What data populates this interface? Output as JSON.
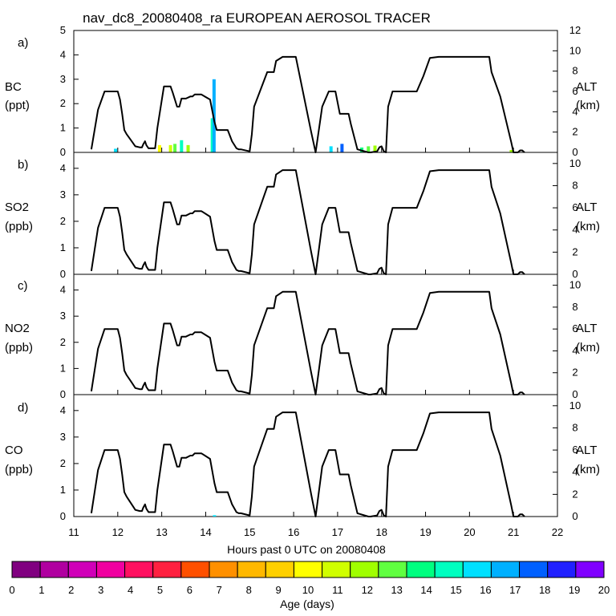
{
  "title": "nav_dc8_20080408_ra EUROPEAN AEROSOL TRACER",
  "x_axis": {
    "label": "Hours past 0 UTC on 20080408",
    "min": 11,
    "max": 22,
    "ticks": [
      "11",
      "12",
      "13",
      "14",
      "15",
      "16",
      "17",
      "18",
      "19",
      "20",
      "21",
      "22"
    ]
  },
  "colorbar": {
    "label": "Age (days)",
    "min": 0,
    "max": 20,
    "ticks": [
      "0",
      "1",
      "2",
      "3",
      "4",
      "5",
      "6",
      "7",
      "8",
      "9",
      "10",
      "11",
      "12",
      "13",
      "14",
      "15",
      "16",
      "17",
      "18",
      "19",
      "20"
    ],
    "colors": [
      "#800080",
      "#b000a0",
      "#d000b8",
      "#f000a0",
      "#ff1060",
      "#ff2040",
      "#ff5000",
      "#ff9000",
      "#ffb800",
      "#ffd000",
      "#ffff00",
      "#d0ff00",
      "#a0ff00",
      "#60ff40",
      "#00ff80",
      "#00ffc0",
      "#00e0ff",
      "#00b0ff",
      "#0060ff",
      "#2020ff",
      "#8000ff"
    ]
  },
  "chart_data": [
    {
      "type": "line",
      "panel": "a)",
      "ylabel": "BC",
      "yunit": "(ppt)",
      "ylim": [
        0,
        5
      ],
      "yticks": [
        "0",
        "1",
        "2",
        "3",
        "4",
        "5"
      ],
      "y2label": "ALT",
      "y2unit": "(km)",
      "y2lim": [
        0,
        12
      ],
      "y2ticks": [
        "0",
        "2",
        "4",
        "6",
        "8",
        "10",
        "12"
      ],
      "tracer_bars": [
        {
          "x": 11.95,
          "value": 0.15,
          "age": 16
        },
        {
          "x": 12.95,
          "value": 0.3,
          "age": 10
        },
        {
          "x": 13.2,
          "value": 0.3,
          "age": 11
        },
        {
          "x": 13.3,
          "value": 0.35,
          "age": 13
        },
        {
          "x": 13.45,
          "value": 0.5,
          "age": 15
        },
        {
          "x": 13.6,
          "value": 0.3,
          "age": 12
        },
        {
          "x": 14.15,
          "value": 1.4,
          "age": 15
        },
        {
          "x": 14.19,
          "value": 3.0,
          "age": 17
        },
        {
          "x": 16.85,
          "value": 0.25,
          "age": 16
        },
        {
          "x": 17.1,
          "value": 0.35,
          "age": 18
        },
        {
          "x": 17.55,
          "value": 0.2,
          "age": 14
        },
        {
          "x": 17.7,
          "value": 0.25,
          "age": 13
        },
        {
          "x": 17.85,
          "value": 0.28,
          "age": 12
        },
        {
          "x": 20.95,
          "value": 0.1,
          "age": 12
        }
      ]
    },
    {
      "type": "line",
      "panel": "b)",
      "ylabel": "SO2",
      "yunit": "(ppb)",
      "ylim": [
        0,
        4.6
      ],
      "yticks": [
        "0",
        "1",
        "2",
        "3",
        "4"
      ],
      "y2label": "ALT",
      "y2unit": "(km)",
      "y2lim": [
        0,
        11
      ],
      "y2ticks": [
        "0",
        "2",
        "4",
        "6",
        "8",
        "10"
      ],
      "tracer_bars": []
    },
    {
      "type": "line",
      "panel": "c)",
      "ylabel": "NO2",
      "yunit": "(ppb)",
      "ylim": [
        0,
        4.6
      ],
      "yticks": [
        "0",
        "1",
        "2",
        "3",
        "4"
      ],
      "y2label": "ALT",
      "y2unit": "(km)",
      "y2lim": [
        0,
        11
      ],
      "y2ticks": [
        "0",
        "2",
        "4",
        "6",
        "8",
        "10"
      ],
      "tracer_bars": []
    },
    {
      "type": "line",
      "panel": "d)",
      "ylabel": "CO",
      "yunit": "(ppb)",
      "ylim": [
        0,
        4.6
      ],
      "yticks": [
        "0",
        "1",
        "2",
        "3",
        "4"
      ],
      "y2label": "ALT",
      "y2unit": "(km)",
      "y2lim": [
        0,
        11
      ],
      "y2ticks": [
        "0",
        "2",
        "4",
        "6",
        "8",
        "10"
      ],
      "tracer_bars": [
        {
          "x": 14.2,
          "value": 0.05,
          "age": 16
        }
      ]
    }
  ],
  "altitude_series": {
    "name": "ALT",
    "x": [
      11.4,
      11.55,
      11.7,
      12.0,
      12.05,
      12.1,
      12.15,
      12.2,
      12.3,
      12.4,
      12.5,
      12.55,
      12.58,
      12.62,
      12.65,
      12.7,
      12.85,
      12.9,
      13.05,
      13.2,
      13.25,
      13.35,
      13.4,
      13.45,
      13.55,
      13.65,
      13.7,
      13.75,
      13.9,
      14.1,
      14.2,
      14.25,
      14.4,
      14.5,
      14.6,
      14.7,
      14.75,
      14.8,
      15.0,
      15.05,
      15.1,
      15.4,
      15.55,
      15.6,
      15.75,
      16.05,
      16.4,
      16.5,
      16.65,
      16.8,
      16.95,
      17.05,
      17.1,
      17.25,
      17.3,
      17.45,
      17.7,
      17.75,
      17.9,
      17.95,
      18.0,
      18.05,
      18.1,
      18.15,
      18.25,
      18.3,
      18.8,
      18.95,
      19.1,
      19.3,
      20.05,
      20.45,
      20.5,
      20.7,
      20.95,
      21.0,
      21.1,
      21.15,
      21.2,
      21.25
    ],
    "alt": [
      0.3,
      4.2,
      6.0,
      6.0,
      5.2,
      3.8,
      2.2,
      1.8,
      1.2,
      0.6,
      0.5,
      0.5,
      0.8,
      1.1,
      0.7,
      0.4,
      0.4,
      2.4,
      6.5,
      6.5,
      5.9,
      4.5,
      4.5,
      5.3,
      5.3,
      5.5,
      5.5,
      5.7,
      5.7,
      5.2,
      3.0,
      2.2,
      2.2,
      2.2,
      1.1,
      0.4,
      0.3,
      0.3,
      0.1,
      1.8,
      4.5,
      7.9,
      7.9,
      9.0,
      9.4,
      9.4,
      2.0,
      0.0,
      4.5,
      6.0,
      6.0,
      3.8,
      3.8,
      3.8,
      2.8,
      0.3,
      0.0,
      0.0,
      0.1,
      0.5,
      0.6,
      0.1,
      0.0,
      4.5,
      6.0,
      6.0,
      6.0,
      7.5,
      9.3,
      9.4,
      9.4,
      9.4,
      7.9,
      5.5,
      1.0,
      0.0,
      0.0,
      0.2,
      0.2,
      0.0
    ]
  }
}
